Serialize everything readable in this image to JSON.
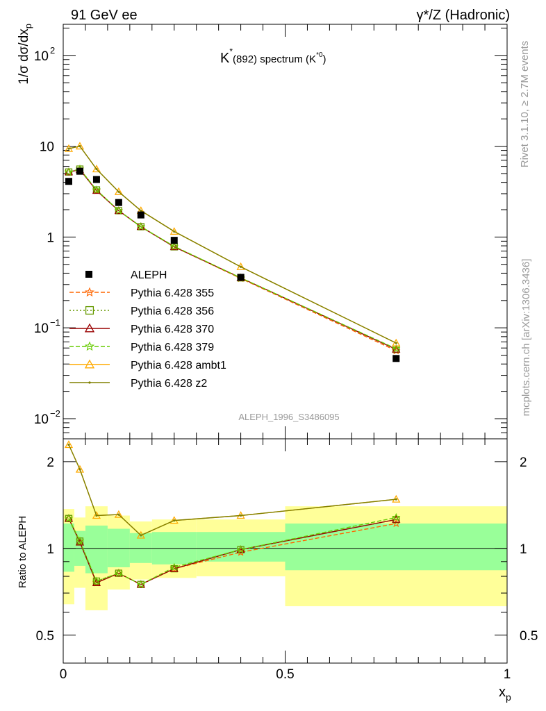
{
  "header": {
    "left": "91 GeV ee",
    "right": "γ*/Z (Hadronic)"
  },
  "side_labels": {
    "rivet": "Rivet 3.1.10, ≥ 2.7M events",
    "mcplots": "mcplots.cern.ch [arXiv:1306.3436]"
  },
  "chart_data": [
    {
      "type": "line",
      "title": "K*(892) spectrum (K*0)",
      "title_parts": {
        "k": "K",
        "star": "*",
        "range": "(892) spectrum (K",
        "star0": "*0",
        "close": ")"
      },
      "ylabel": "1/σ dσ/dx_p",
      "ylabel_parts": {
        "main": "1/σ dσ/dx",
        "sub": "p"
      },
      "xlabel": "x_p",
      "xlabel_parts": {
        "main": "x",
        "sub": "p"
      },
      "yscale": "log",
      "ylim": [
        0.006,
        220
      ],
      "xlim": [
        0,
        1
      ],
      "yticks": [
        {
          "value": 100,
          "base": "10",
          "exp": "2"
        },
        {
          "value": 10,
          "base": "10",
          "exp": ""
        },
        {
          "value": 1,
          "base": "1",
          "exp": ""
        },
        {
          "value": 0.1,
          "base": "10",
          "exp": "−1"
        },
        {
          "value": 0.01,
          "base": "10",
          "exp": "−2"
        }
      ],
      "watermark": "ALEPH_1996_S3486095",
      "legend_position": "center-left",
      "data": {
        "name": "ALEPH",
        "x": [
          0.0125,
          0.0375,
          0.075,
          0.125,
          0.175,
          0.25,
          0.4,
          0.75
        ],
        "y": [
          4.1,
          5.3,
          4.3,
          2.4,
          1.75,
          0.92,
          0.36,
          0.046
        ]
      },
      "series": [
        {
          "name": "Pythia 6.428 355",
          "color": "#ff6600",
          "marker": "star",
          "dash": "6,3",
          "x": [
            0.0125,
            0.0375,
            0.075,
            0.125,
            0.175,
            0.25,
            0.4,
            0.75
          ],
          "y": [
            5.2,
            5.6,
            3.25,
            1.95,
            1.3,
            0.78,
            0.35,
            0.056
          ]
        },
        {
          "name": "Pythia 6.428 356",
          "color": "#669900",
          "marker": "square",
          "dash": "2,3",
          "x": [
            0.0125,
            0.0375,
            0.075,
            0.125,
            0.175,
            0.25,
            0.4,
            0.75
          ],
          "y": [
            5.2,
            5.6,
            3.3,
            1.95,
            1.3,
            0.78,
            0.355,
            0.058
          ]
        },
        {
          "name": "Pythia 6.428 370",
          "color": "#990000",
          "marker": "triangle",
          "dash": "",
          "x": [
            0.0125,
            0.0375,
            0.075,
            0.125,
            0.175,
            0.25,
            0.4,
            0.75
          ],
          "y": [
            5.2,
            5.5,
            3.25,
            1.95,
            1.3,
            0.78,
            0.355,
            0.058
          ]
        },
        {
          "name": "Pythia 6.428 379",
          "color": "#66cc00",
          "marker": "star",
          "dash": "6,3",
          "x": [
            0.0125,
            0.0375,
            0.075,
            0.125,
            0.175,
            0.25,
            0.4,
            0.75
          ],
          "y": [
            5.2,
            5.6,
            3.3,
            1.95,
            1.3,
            0.79,
            0.355,
            0.059
          ]
        },
        {
          "name": "Pythia 6.428 ambt1",
          "color": "#ffaa00",
          "marker": "triangle",
          "dash": "",
          "x": [
            0.0125,
            0.0375,
            0.075,
            0.125,
            0.175,
            0.25,
            0.4,
            0.75
          ],
          "y": [
            9.4,
            10.0,
            5.6,
            3.15,
            1.95,
            1.15,
            0.47,
            0.068
          ]
        },
        {
          "name": "Pythia 6.428 z2",
          "color": "#808000",
          "marker": "dot",
          "dash": "",
          "x": [
            0.0125,
            0.0375,
            0.075,
            0.125,
            0.175,
            0.25,
            0.4,
            0.75
          ],
          "y": [
            9.4,
            10.0,
            5.6,
            3.15,
            1.95,
            1.15,
            0.47,
            0.068
          ]
        }
      ]
    },
    {
      "type": "line",
      "ylabel": "Ratio to ALEPH",
      "yscale": "log",
      "ylim": [
        0.4,
        2.4
      ],
      "xlim": [
        0,
        1
      ],
      "yticks": [
        0.5,
        1,
        2
      ],
      "xticks": [
        0,
        0.5,
        1
      ],
      "bands": [
        {
          "x": [
            0,
            0.025
          ],
          "inner": [
            0.83,
            1.22
          ],
          "outer": [
            0.64,
            1.37
          ]
        },
        {
          "x": [
            0.025,
            0.05
          ],
          "inner": [
            0.87,
            1.15
          ],
          "outer": [
            0.73,
            1.28
          ]
        },
        {
          "x": [
            0.05,
            0.1
          ],
          "inner": [
            0.82,
            1.2
          ],
          "outer": [
            0.61,
            1.4
          ]
        },
        {
          "x": [
            0.1,
            0.15
          ],
          "inner": [
            0.86,
            1.17
          ],
          "outer": [
            0.72,
            1.3
          ]
        },
        {
          "x": [
            0.15,
            0.2
          ],
          "inner": [
            0.89,
            1.13
          ],
          "outer": [
            0.78,
            1.24
          ]
        },
        {
          "x": [
            0.2,
            0.3
          ],
          "inner": [
            0.88,
            1.14
          ],
          "outer": [
            0.79,
            1.26
          ]
        },
        {
          "x": [
            0.3,
            0.5
          ],
          "inner": [
            0.9,
            1.14
          ],
          "outer": [
            0.8,
            1.26
          ]
        },
        {
          "x": [
            0.5,
            1.0
          ],
          "inner": [
            0.84,
            1.22
          ],
          "outer": [
            0.63,
            1.4
          ]
        }
      ],
      "series": [
        {
          "name": "Pythia 6.428 355",
          "y": [
            1.27,
            1.06,
            0.76,
            0.82,
            0.75,
            0.85,
            0.97,
            1.22
          ]
        },
        {
          "name": "Pythia 6.428 356",
          "y": [
            1.27,
            1.06,
            0.77,
            0.82,
            0.75,
            0.85,
            0.99,
            1.26
          ]
        },
        {
          "name": "Pythia 6.428 370",
          "y": [
            1.27,
            1.05,
            0.76,
            0.82,
            0.75,
            0.85,
            0.99,
            1.26
          ]
        },
        {
          "name": "Pythia 6.428 379",
          "y": [
            1.27,
            1.06,
            0.77,
            0.82,
            0.75,
            0.86,
            0.99,
            1.28
          ]
        },
        {
          "name": "Pythia 6.428 ambt1",
          "y": [
            2.29,
            1.88,
            1.3,
            1.31,
            1.11,
            1.25,
            1.3,
            1.48
          ]
        },
        {
          "name": "Pythia 6.428 z2",
          "y": [
            2.29,
            1.88,
            1.3,
            1.31,
            1.11,
            1.25,
            1.3,
            1.48
          ]
        }
      ]
    }
  ]
}
